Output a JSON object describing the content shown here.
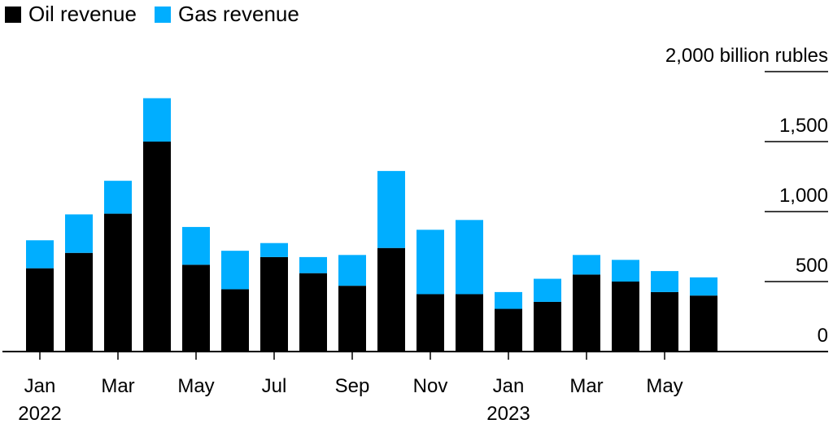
{
  "legend": {
    "oil_label": "Oil revenue",
    "gas_label": "Gas revenue"
  },
  "colors": {
    "oil": "#000000",
    "gas": "#00aeff",
    "axis": "#000000"
  },
  "chart_data": {
    "type": "bar",
    "stacked": true,
    "categories": [
      "Jan 2022",
      "Feb 2022",
      "Mar 2022",
      "Apr 2022",
      "May 2022",
      "Jun 2022",
      "Jul 2022",
      "Aug 2022",
      "Sep 2022",
      "Oct 2022",
      "Nov 2022",
      "Dec 2022",
      "Jan 2023",
      "Feb 2023",
      "Mar 2023",
      "Apr 2023",
      "May 2023",
      "Jun 2023"
    ],
    "series": [
      {
        "name": "Oil revenue",
        "values": [
          595,
          705,
          985,
          1500,
          620,
          445,
          675,
          560,
          470,
          740,
          410,
          410,
          305,
          355,
          550,
          500,
          425,
          400
        ]
      },
      {
        "name": "Gas revenue",
        "values": [
          200,
          275,
          235,
          310,
          270,
          275,
          100,
          115,
          220,
          550,
          460,
          530,
          120,
          165,
          140,
          155,
          150,
          130
        ]
      }
    ],
    "x_tick_labels": [
      {
        "index": 0,
        "line1": "Jan",
        "line2": "2022"
      },
      {
        "index": 2,
        "line1": "Mar",
        "line2": ""
      },
      {
        "index": 4,
        "line1": "May",
        "line2": ""
      },
      {
        "index": 6,
        "line1": "Jul",
        "line2": ""
      },
      {
        "index": 8,
        "line1": "Sep",
        "line2": ""
      },
      {
        "index": 10,
        "line1": "Nov",
        "line2": ""
      },
      {
        "index": 12,
        "line1": "Jan",
        "line2": "2023"
      },
      {
        "index": 14,
        "line1": "Mar",
        "line2": ""
      },
      {
        "index": 16,
        "line1": "May",
        "line2": ""
      }
    ],
    "y_ticks": [
      {
        "value": 0,
        "label": "0"
      },
      {
        "value": 500,
        "label": "500"
      },
      {
        "value": 1000,
        "label": "1,000"
      },
      {
        "value": 1500,
        "label": "1,500"
      },
      {
        "value": 2000,
        "label": "2,000 billion rubles"
      }
    ],
    "ylim": [
      0,
      2000
    ],
    "title": "",
    "xlabel": "",
    "ylabel": "",
    "legend_position": "top-left",
    "grid": true
  }
}
